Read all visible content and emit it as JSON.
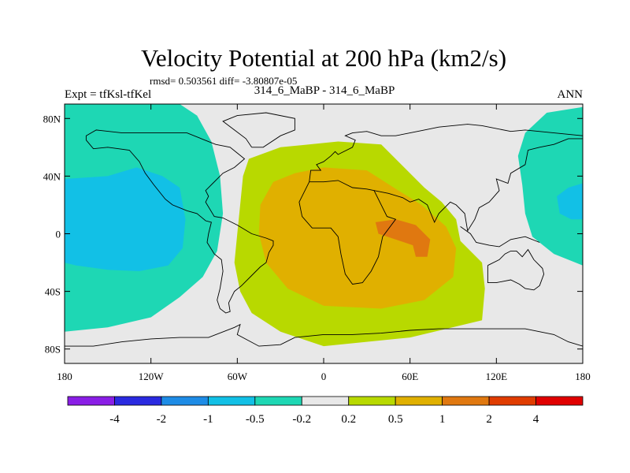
{
  "chart_data": {
    "type": "heatmap",
    "title": "Velocity Potential at 200 hPa (km2/s)",
    "subtitle_stats": "rmsd= 0.503561  diff= -3.80807e-05",
    "left_label": "Expt = tfKsl-tfKel",
    "center_label": "314_6_MaBP - 314_6_MaBP",
    "right_label": "ANN",
    "x_axis": {
      "range": [
        -180,
        180
      ],
      "ticks": [
        {
          "value": -180,
          "label": "180"
        },
        {
          "value": -120,
          "label": "120W"
        },
        {
          "value": -60,
          "label": "60W"
        },
        {
          "value": 0,
          "label": "0"
        },
        {
          "value": 60,
          "label": "60E"
        },
        {
          "value": 120,
          "label": "120E"
        },
        {
          "value": 180,
          "label": "180"
        }
      ]
    },
    "y_axis": {
      "range": [
        -90,
        90
      ],
      "ticks": [
        {
          "value": 80,
          "label": "80N"
        },
        {
          "value": 40,
          "label": "40N"
        },
        {
          "value": 0,
          "label": "0"
        },
        {
          "value": -40,
          "label": "40S"
        },
        {
          "value": -80,
          "label": "80S"
        }
      ]
    },
    "colorbar": {
      "levels": [
        "-4",
        "-2",
        "-1",
        "-0.5",
        "-0.2",
        "0.2",
        "0.5",
        "1",
        "2",
        "4"
      ],
      "colors": [
        "#8a1ee6",
        "#2a2ae0",
        "#1e8ce6",
        "#12c0e6",
        "#1ed7b4",
        "#e8e8e8",
        "#b8d900",
        "#e0b000",
        "#e07810",
        "#e03c00",
        "#e00000"
      ]
    },
    "regions": [
      {
        "name": "positive-0.2-region",
        "color": "#b8d900",
        "points": [
          [
            -52,
            52
          ],
          [
            -30,
            60
          ],
          [
            10,
            64
          ],
          [
            40,
            62
          ],
          [
            58,
            44
          ],
          [
            70,
            32
          ],
          [
            82,
            22
          ],
          [
            92,
            10
          ],
          [
            95,
            -5
          ],
          [
            110,
            -20
          ],
          [
            112,
            -38
          ],
          [
            110,
            -60
          ],
          [
            60,
            -72
          ],
          [
            0,
            -78
          ],
          [
            -30,
            -68
          ],
          [
            -50,
            -55
          ],
          [
            -58,
            -40
          ],
          [
            -62,
            -20
          ],
          [
            -60,
            0
          ],
          [
            -58,
            20
          ],
          [
            -56,
            40
          ]
        ]
      },
      {
        "name": "positive-0.5-region",
        "color": "#e0b000",
        "points": [
          [
            -35,
            36
          ],
          [
            -20,
            42
          ],
          [
            0,
            46
          ],
          [
            30,
            44
          ],
          [
            52,
            30
          ],
          [
            68,
            20
          ],
          [
            85,
            5
          ],
          [
            92,
            -10
          ],
          [
            90,
            -30
          ],
          [
            70,
            -46
          ],
          [
            40,
            -52
          ],
          [
            0,
            -50
          ],
          [
            -25,
            -38
          ],
          [
            -40,
            -20
          ],
          [
            -45,
            0
          ],
          [
            -44,
            20
          ]
        ]
      },
      {
        "name": "positive-1-region",
        "color": "#e07810",
        "points": [
          [
            36,
            8
          ],
          [
            50,
            10
          ],
          [
            64,
            6
          ],
          [
            74,
            -4
          ],
          [
            72,
            -16
          ],
          [
            64,
            -16
          ],
          [
            62,
            -8
          ],
          [
            50,
            -4
          ],
          [
            38,
            0
          ]
        ]
      },
      {
        "name": "negative-0.2-west-region",
        "color": "#1ed7b4",
        "points": [
          [
            -180,
            90
          ],
          [
            -100,
            90
          ],
          [
            -88,
            82
          ],
          [
            -78,
            64
          ],
          [
            -72,
            40
          ],
          [
            -70,
            14
          ],
          [
            -74,
            -12
          ],
          [
            -84,
            -30
          ],
          [
            -100,
            -44
          ],
          [
            -120,
            -58
          ],
          [
            -150,
            -65
          ],
          [
            -180,
            -68
          ]
        ]
      },
      {
        "name": "negative-0.5-west-region",
        "color": "#12c0e6",
        "points": [
          [
            -180,
            38
          ],
          [
            -150,
            40
          ],
          [
            -130,
            46
          ],
          [
            -112,
            40
          ],
          [
            -100,
            32
          ],
          [
            -96,
            10
          ],
          [
            -98,
            -10
          ],
          [
            -108,
            -22
          ],
          [
            -128,
            -26
          ],
          [
            -150,
            -25
          ],
          [
            -172,
            -22
          ],
          [
            -180,
            -20
          ]
        ]
      },
      {
        "name": "negative-0.2-east-region",
        "color": "#1ed7b4",
        "points": [
          [
            180,
            88
          ],
          [
            155,
            84
          ],
          [
            140,
            70
          ],
          [
            135,
            54
          ],
          [
            138,
            34
          ],
          [
            140,
            14
          ],
          [
            145,
            -2
          ],
          [
            160,
            -14
          ],
          [
            180,
            -22
          ]
        ]
      },
      {
        "name": "negative-0.5-east-region",
        "color": "#12c0e6",
        "points": [
          [
            180,
            35
          ],
          [
            170,
            32
          ],
          [
            162,
            26
          ],
          [
            164,
            14
          ],
          [
            172,
            10
          ],
          [
            180,
            10
          ]
        ]
      }
    ],
    "coastlines": [
      {
        "name": "coastline-africa-eurasia",
        "points": [
          [
            -10,
            36
          ],
          [
            -17,
            22
          ],
          [
            -15,
            12
          ],
          [
            -8,
            4
          ],
          [
            5,
            4
          ],
          [
            10,
            -2
          ],
          [
            12,
            -14
          ],
          [
            15,
            -28
          ],
          [
            20,
            -35
          ],
          [
            27,
            -34
          ],
          [
            33,
            -26
          ],
          [
            38,
            -16
          ],
          [
            41,
            -2
          ],
          [
            50,
            10
          ],
          [
            44,
            12
          ],
          [
            40,
            20
          ],
          [
            35,
            30
          ],
          [
            30,
            31
          ],
          [
            20,
            32
          ],
          [
            10,
            37
          ],
          [
            0,
            36
          ],
          [
            -5,
            36
          ],
          [
            -10,
            36
          ]
        ]
      },
      {
        "name": "coastline-arabia-asia",
        "points": [
          [
            35,
            30
          ],
          [
            45,
            28
          ],
          [
            55,
            25
          ],
          [
            60,
            22
          ],
          [
            66,
            24
          ],
          [
            72,
            20
          ],
          [
            77,
            8
          ],
          [
            80,
            14
          ],
          [
            88,
            22
          ],
          [
            92,
            20
          ],
          [
            98,
            14
          ],
          [
            100,
            2
          ],
          [
            105,
            10
          ],
          [
            108,
            18
          ],
          [
            115,
            22
          ],
          [
            122,
            30
          ],
          [
            120,
            38
          ],
          [
            128,
            35
          ],
          [
            130,
            42
          ],
          [
            140,
            48
          ],
          [
            142,
            58
          ],
          [
            150,
            60
          ],
          [
            160,
            62
          ],
          [
            170,
            66
          ],
          [
            180,
            66
          ]
        ]
      },
      {
        "name": "coastline-europe",
        "points": [
          [
            -10,
            36
          ],
          [
            -9,
            44
          ],
          [
            -2,
            44
          ],
          [
            -5,
            48
          ],
          [
            0,
            50
          ],
          [
            5,
            54
          ],
          [
            8,
            57
          ],
          [
            10,
            55
          ],
          [
            12,
            56
          ],
          [
            20,
            60
          ],
          [
            22,
            65
          ],
          [
            15,
            68
          ],
          [
            20,
            70
          ],
          [
            30,
            71
          ],
          [
            40,
            68
          ],
          [
            50,
            68
          ],
          [
            60,
            70
          ],
          [
            70,
            72
          ],
          [
            80,
            74
          ],
          [
            100,
            76
          ],
          [
            110,
            75
          ],
          [
            130,
            71
          ],
          [
            140,
            72
          ],
          [
            160,
            70
          ],
          [
            180,
            68
          ]
        ]
      },
      {
        "name": "coastline-north-america",
        "points": [
          [
            -165,
            65
          ],
          [
            -160,
            59
          ],
          [
            -150,
            60
          ],
          [
            -135,
            58
          ],
          [
            -128,
            50
          ],
          [
            -124,
            42
          ],
          [
            -118,
            34
          ],
          [
            -110,
            24
          ],
          [
            -105,
            20
          ],
          [
            -95,
            16
          ],
          [
            -88,
            14
          ],
          [
            -82,
            9
          ],
          [
            -78,
            8
          ],
          [
            -80,
            0
          ],
          [
            -81,
            -6
          ],
          [
            -76,
            -14
          ],
          [
            -71,
            -18
          ],
          [
            -70,
            -26
          ],
          [
            -72,
            -38
          ],
          [
            -74,
            -46
          ],
          [
            -72,
            -52
          ],
          [
            -68,
            -55
          ],
          [
            -65,
            -54
          ],
          [
            -66,
            -48
          ],
          [
            -62,
            -40
          ],
          [
            -57,
            -36
          ],
          [
            -50,
            -29
          ],
          [
            -44,
            -23
          ],
          [
            -40,
            -20
          ],
          [
            -38,
            -13
          ],
          [
            -35,
            -8
          ],
          [
            -35,
            -5
          ],
          [
            -40,
            -3
          ],
          [
            -50,
            0
          ],
          [
            -60,
            6
          ],
          [
            -70,
            11
          ],
          [
            -76,
            12
          ],
          [
            -82,
            22
          ],
          [
            -80,
            26
          ],
          [
            -82,
            30
          ],
          [
            -77,
            35
          ],
          [
            -70,
            42
          ],
          [
            -62,
            46
          ],
          [
            -55,
            52
          ],
          [
            -60,
            56
          ],
          [
            -65,
            60
          ],
          [
            -75,
            62
          ],
          [
            -85,
            66
          ],
          [
            -95,
            70
          ],
          [
            -110,
            70
          ],
          [
            -125,
            70
          ],
          [
            -140,
            70
          ],
          [
            -158,
            72
          ],
          [
            -165,
            68
          ],
          [
            -165,
            65
          ]
        ]
      },
      {
        "name": "coastline-greenland",
        "points": [
          [
            -50,
            60
          ],
          [
            -42,
            60
          ],
          [
            -30,
            68
          ],
          [
            -20,
            72
          ],
          [
            -20,
            80
          ],
          [
            -40,
            84
          ],
          [
            -60,
            82
          ],
          [
            -70,
            78
          ],
          [
            -62,
            72
          ],
          [
            -54,
            66
          ],
          [
            -50,
            60
          ]
        ]
      },
      {
        "name": "coastline-australia",
        "points": [
          [
            114,
            -22
          ],
          [
            114,
            -34
          ],
          [
            120,
            -34
          ],
          [
            130,
            -32
          ],
          [
            136,
            -35
          ],
          [
            140,
            -38
          ],
          [
            146,
            -39
          ],
          [
            150,
            -36
          ],
          [
            153,
            -28
          ],
          [
            152,
            -24
          ],
          [
            146,
            -18
          ],
          [
            142,
            -11
          ],
          [
            138,
            -16
          ],
          [
            134,
            -12
          ],
          [
            130,
            -12
          ],
          [
            126,
            -14
          ],
          [
            122,
            -18
          ],
          [
            114,
            -22
          ]
        ]
      },
      {
        "name": "coastline-indonesia",
        "points": [
          [
            95,
            5
          ],
          [
            102,
            0
          ],
          [
            106,
            -6
          ],
          [
            115,
            -8
          ],
          [
            122,
            -9
          ],
          [
            130,
            -4
          ],
          [
            140,
            -2
          ],
          [
            150,
            -6
          ]
        ]
      },
      {
        "name": "coastline-antarctica",
        "points": [
          [
            -180,
            -78
          ],
          [
            -160,
            -78
          ],
          [
            -140,
            -75
          ],
          [
            -120,
            -73
          ],
          [
            -100,
            -72
          ],
          [
            -80,
            -72
          ],
          [
            -62,
            -65
          ],
          [
            -58,
            -63
          ],
          [
            -60,
            -70
          ],
          [
            -45,
            -78
          ],
          [
            -30,
            -77
          ],
          [
            -20,
            -72
          ],
          [
            0,
            -70
          ],
          [
            20,
            -70
          ],
          [
            40,
            -69
          ],
          [
            60,
            -67
          ],
          [
            80,
            -66
          ],
          [
            100,
            -66
          ],
          [
            120,
            -66
          ],
          [
            140,
            -66
          ],
          [
            160,
            -70
          ],
          [
            170,
            -75
          ],
          [
            180,
            -78
          ]
        ]
      }
    ]
  }
}
